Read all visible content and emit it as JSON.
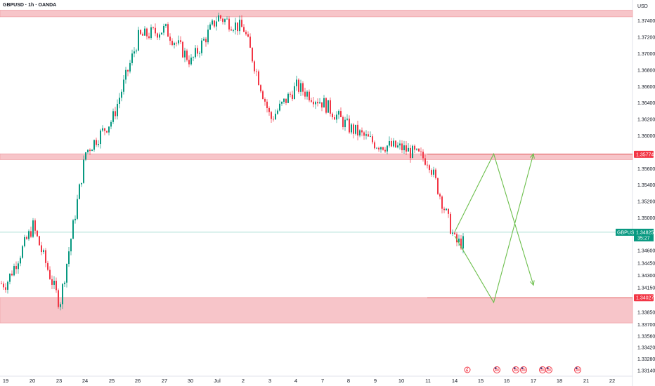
{
  "header": {
    "symbol_title": "GBPUSD · 1h · OANDA",
    "currency": "USD"
  },
  "colors": {
    "up": "#089981",
    "down": "#f23645",
    "zone_fill": "#f7c5c9",
    "zone_border": "#f0a3a9",
    "projection": "#6cbf4c",
    "current_price_bg": "#089981",
    "level_tag_bg": "#f23645"
  },
  "chart_data": {
    "type": "candlestick",
    "symbol": "GBPUSD",
    "timeframe": "1h",
    "broker": "OANDA",
    "ylim": [
      1.3308,
      1.3762
    ],
    "y_ticks": [
      "1.37400",
      "1.37200",
      "1.37000",
      "1.36800",
      "1.36600",
      "1.36400",
      "1.36200",
      "1.36000",
      "1.35600",
      "1.35400",
      "1.35200",
      "1.35000",
      "1.34600",
      "1.34450",
      "1.34300",
      "1.34150",
      "1.33850",
      "1.33700",
      "1.33560",
      "1.33420",
      "1.33280",
      "1.33140"
    ],
    "x_ticks": [
      "19",
      "20",
      "23",
      "24",
      "25",
      "26",
      "27",
      "30",
      "Jul",
      "2",
      "3",
      "4",
      "7",
      "8",
      "9",
      "10",
      "11",
      "14",
      "15",
      "16",
      "17",
      "18",
      "21",
      "22"
    ],
    "price_series": {
      "x": [
        "19",
        "20",
        "23",
        "24",
        "25",
        "26",
        "27",
        "30",
        "Jul",
        "2",
        "3",
        "4",
        "7",
        "8",
        "9",
        "10",
        "11",
        "14"
      ],
      "close": [
        1.342,
        1.349,
        1.3395,
        1.358,
        1.362,
        1.372,
        1.373,
        1.369,
        1.3745,
        1.373,
        1.362,
        1.366,
        1.364,
        1.361,
        1.359,
        1.3585,
        1.357,
        1.347
      ]
    },
    "current_price": {
      "value": "1.34825",
      "countdown": "35:27",
      "level": 1.34825
    },
    "levels": [
      {
        "label": "1.35774",
        "value": 1.35774
      },
      {
        "label": "1.34027",
        "value": 1.34027
      }
    ],
    "zones": [
      {
        "name": "resistance-top",
        "from": 1.3745,
        "to": 1.3753
      },
      {
        "name": "resistance-mid",
        "from": 1.3571,
        "to": 1.3578
      },
      {
        "name": "support",
        "from": 1.3372,
        "to": 1.3403
      }
    ],
    "projection": {
      "path_a": [
        [
          "14",
          1.3478
        ],
        [
          "15.5",
          1.3397
        ],
        [
          "17",
          1.3578
        ]
      ],
      "path_b": [
        [
          "14",
          1.3483
        ],
        [
          "15.5",
          1.3578
        ],
        [
          "17",
          1.3418
        ]
      ]
    },
    "events": [
      "lightning",
      "us-flag",
      "us-flag",
      "us-flag",
      "us-flag",
      "us-flag",
      "us-flag"
    ]
  }
}
